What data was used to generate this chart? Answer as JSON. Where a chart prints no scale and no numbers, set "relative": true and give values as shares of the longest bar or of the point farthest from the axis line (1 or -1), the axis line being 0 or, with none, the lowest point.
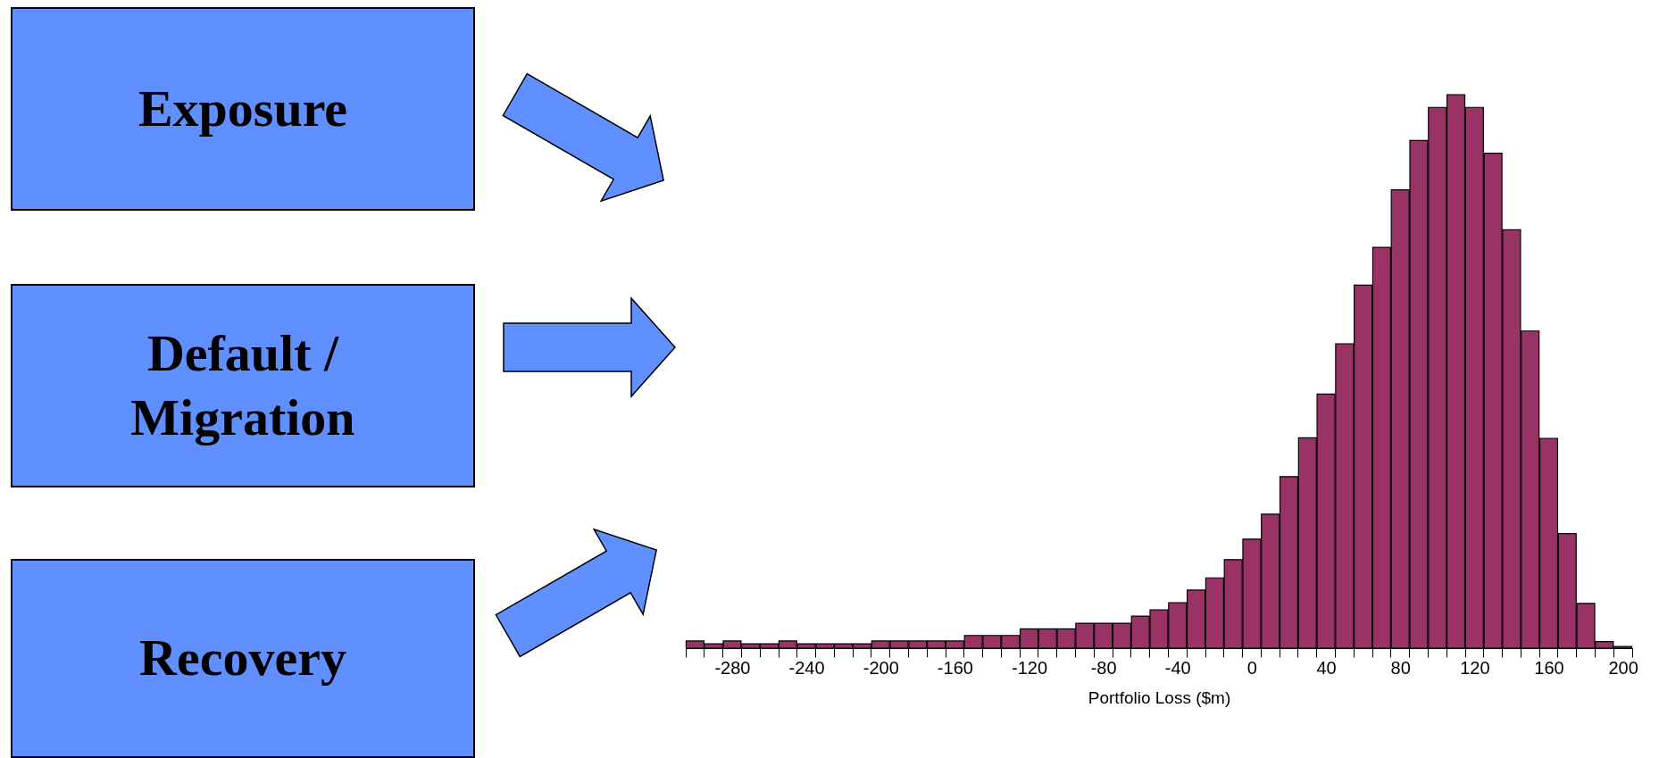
{
  "chart_data": {
    "type": "bar",
    "relative": true,
    "xlabel": "Portfolio Loss ($m)",
    "color": "#993366",
    "categories": [
      null,
      null,
      "-280",
      null,
      null,
      null,
      "-240",
      null,
      null,
      null,
      "-200",
      null,
      null,
      null,
      "-160",
      null,
      null,
      null,
      "-120",
      null,
      null,
      null,
      "-80",
      null,
      null,
      null,
      "-40",
      null,
      null,
      null,
      "0",
      null,
      null,
      null,
      "40",
      null,
      null,
      null,
      "80",
      null,
      null,
      null,
      "120",
      null,
      null,
      null,
      "160",
      null,
      null,
      null,
      "200"
    ],
    "values": [
      0.013,
      0.008,
      0.013,
      0.008,
      0.008,
      0.013,
      0.008,
      0.008,
      0.008,
      0.008,
      0.013,
      0.013,
      0.013,
      0.013,
      0.013,
      0.023,
      0.023,
      0.023,
      0.035,
      0.035,
      0.035,
      0.045,
      0.045,
      0.045,
      0.058,
      0.069,
      0.082,
      0.105,
      0.127,
      0.16,
      0.197,
      0.242,
      0.31,
      0.38,
      0.459,
      0.55,
      0.656,
      0.724,
      0.828,
      0.917,
      0.977,
      1,
      0.977,
      0.894,
      0.756,
      0.573,
      0.379,
      0.207,
      0.081,
      0.012,
      0.003
    ],
    "annotations": [
      "Exposure",
      "Default / Migration",
      "Recovery"
    ]
  }
}
